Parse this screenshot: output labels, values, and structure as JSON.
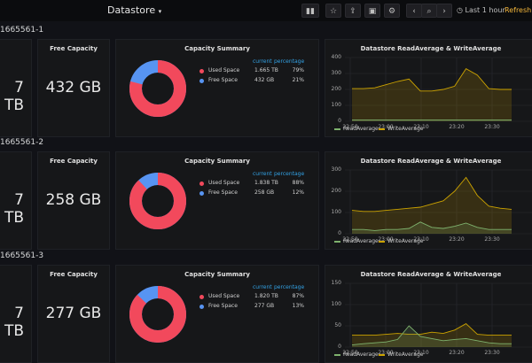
{
  "header": {
    "title": "Datastore",
    "time_range": "Last 1 hour",
    "refresh_label": "Refresh e"
  },
  "rows": [
    {
      "label": "1665561-1",
      "left_value": "7 TB",
      "free_title": "Free Capacity",
      "free_value": "432 GB",
      "summary_title": "Capacity Summary",
      "col_current": "current",
      "col_percentage": "percentage",
      "used_label": "Used Space",
      "used_current": "1.665 TB",
      "used_pct": "79%",
      "free_label": "Free Space",
      "free_current": "432 GB",
      "free_pct": "21%",
      "donut_used_fraction": 0.79,
      "graph_title": "Datastore ReadAverage & WriteAverage",
      "y_ticks": [
        "400",
        "300",
        "200",
        "100",
        "0"
      ],
      "y_max": 400,
      "x_ticks": [
        "22:50",
        "23:00",
        "23:10",
        "23:20",
        "23:30"
      ],
      "read_series": [
        8,
        8,
        8,
        8,
        8,
        8,
        8,
        8,
        8,
        8,
        8,
        8,
        8,
        8,
        8
      ],
      "write_series": [
        205,
        205,
        210,
        230,
        250,
        265,
        190,
        190,
        200,
        220,
        330,
        290,
        205,
        200,
        200
      ],
      "legend_read": "ReadAverage",
      "legend_write": "WriteAverage"
    },
    {
      "label": "1665561-2",
      "left_value": "7 TB",
      "free_title": "Free Capacity",
      "free_value": "258 GB",
      "summary_title": "Capacity Summary",
      "col_current": "current",
      "col_percentage": "percentage",
      "used_label": "Used Space",
      "used_current": "1.838 TB",
      "used_pct": "88%",
      "free_label": "Free Space",
      "free_current": "258 GB",
      "free_pct": "12%",
      "donut_used_fraction": 0.88,
      "graph_title": "Datastore ReadAverage & WriteAverage",
      "y_ticks": [
        "300",
        "200",
        "100",
        "0"
      ],
      "y_max": 300,
      "x_ticks": [
        "22:50",
        "23:00",
        "23:10",
        "23:20",
        "23:30"
      ],
      "read_series": [
        20,
        20,
        15,
        20,
        20,
        25,
        55,
        30,
        25,
        35,
        50,
        30,
        20,
        20,
        20
      ],
      "write_series": [
        110,
        105,
        105,
        110,
        115,
        120,
        125,
        140,
        155,
        200,
        265,
        180,
        130,
        120,
        115
      ],
      "legend_read": "ReadAverage",
      "legend_write": "WriteAverage"
    },
    {
      "label": "1665561-3",
      "left_value": "7 TB",
      "free_title": "Free Capacity",
      "free_value": "277 GB",
      "summary_title": "Capacity Summary",
      "col_current": "current",
      "col_percentage": "percentage",
      "used_label": "Used Space",
      "used_current": "1.820 TB",
      "used_pct": "87%",
      "free_label": "Free Space",
      "free_current": "277 GB",
      "free_pct": "13%",
      "donut_used_fraction": 0.87,
      "graph_title": "Datastore ReadAverage & WriteAverage",
      "y_ticks": [
        "150",
        "100",
        "50",
        "0"
      ],
      "y_max": 150,
      "x_ticks": [
        "22:50",
        "23:00",
        "23:10",
        "23:20",
        "23:30"
      ],
      "read_series": [
        5,
        8,
        10,
        12,
        18,
        50,
        25,
        20,
        15,
        18,
        20,
        15,
        10,
        8,
        8
      ],
      "write_series": [
        28,
        28,
        28,
        30,
        32,
        30,
        30,
        35,
        32,
        40,
        55,
        30,
        28,
        28,
        28
      ],
      "legend_read": "ReadAverage",
      "legend_write": "WriteAverage"
    }
  ],
  "colors": {
    "used": "#f2495c",
    "free": "#5794f2",
    "read": "#7eb26d",
    "write": "#cca300",
    "accent": "#33a2e5"
  }
}
